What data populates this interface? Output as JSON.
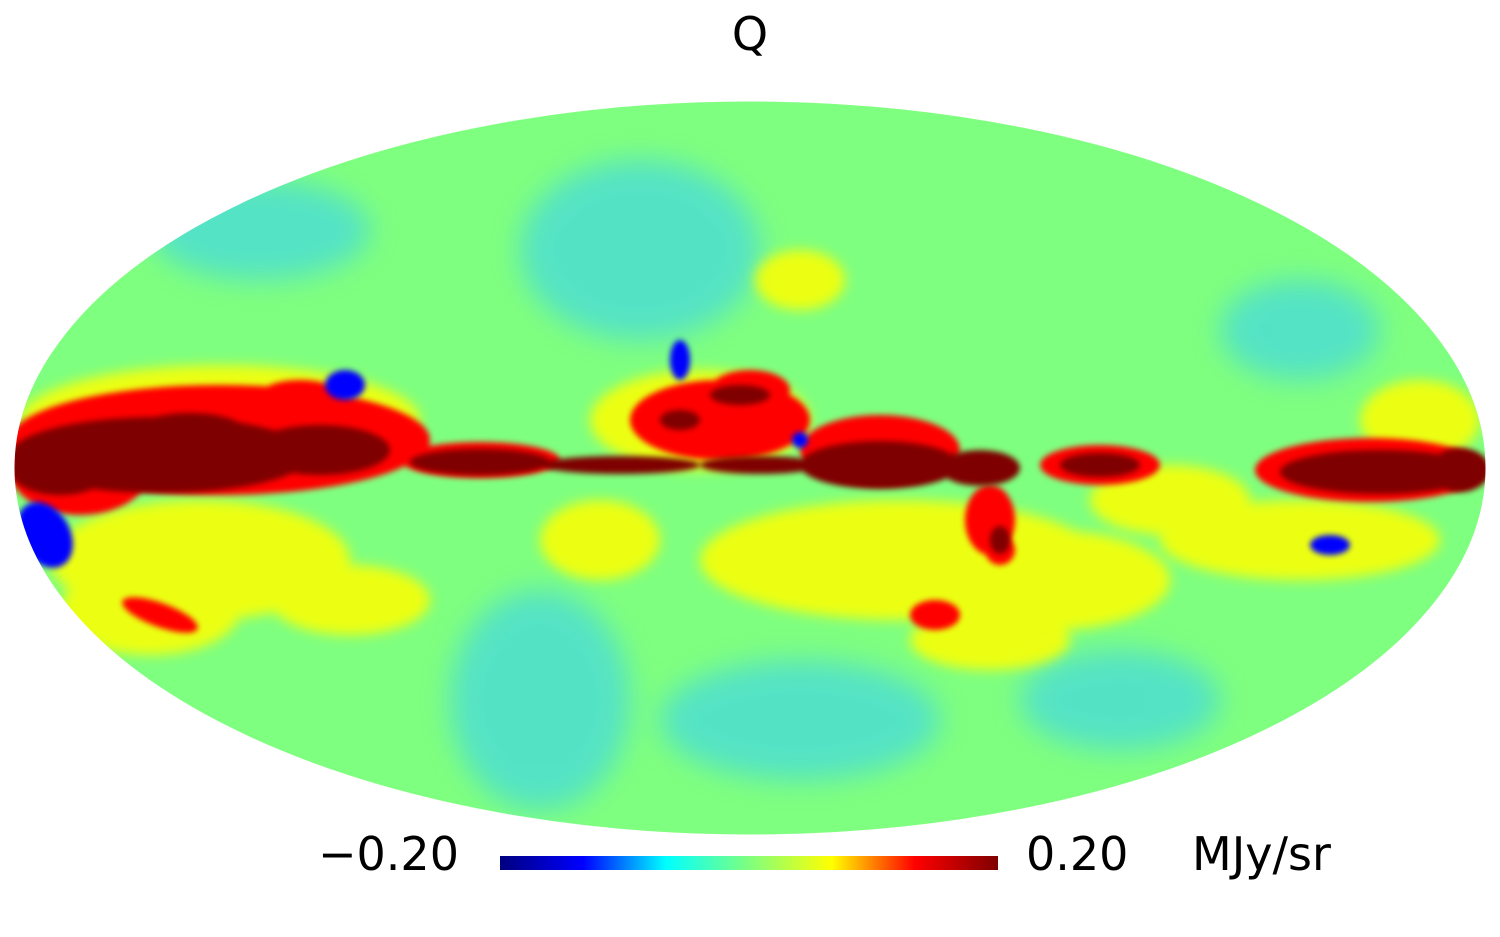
{
  "title": "Q",
  "colorbar": {
    "min_label": "−0.20",
    "max_label": "0.20",
    "unit": "MJy/sr",
    "min_value": -0.2,
    "max_value": 0.2,
    "colormap": "jet",
    "colors": [
      "#00007f",
      "#0000ff",
      "#00ffff",
      "#7fff7f",
      "#ffff00",
      "#ff0000",
      "#7f0000"
    ]
  },
  "map": {
    "projection": "mollweide",
    "background_color": "#7fff7f",
    "galactic_plane_color": "#7f0000",
    "outer_band_color": "#ff0000",
    "halo_color": "#ffff00",
    "negative_color": "#33ccff",
    "strong_negative_color": "#0000ff"
  }
}
